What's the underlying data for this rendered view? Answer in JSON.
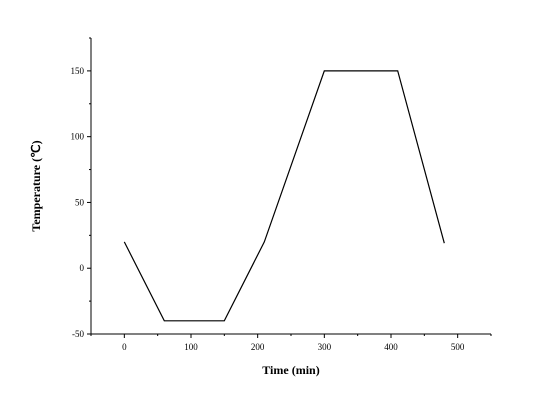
{
  "chart_data": {
    "type": "line",
    "title": "",
    "xlabel": "Time (min)",
    "ylabel": "Temperature (℃)",
    "xlim": [
      -50,
      550
    ],
    "ylim": [
      -50,
      175
    ],
    "x_ticks": [
      0,
      100,
      200,
      300,
      400,
      500
    ],
    "y_ticks": [
      -50,
      0,
      50,
      100,
      150
    ],
    "grid": false,
    "legend": "none",
    "series": [
      {
        "x": [
          0,
          60,
          150,
          210,
          300,
          410,
          480
        ],
        "y": [
          20,
          -40,
          -40,
          20,
          150,
          150,
          19
        ]
      }
    ]
  }
}
